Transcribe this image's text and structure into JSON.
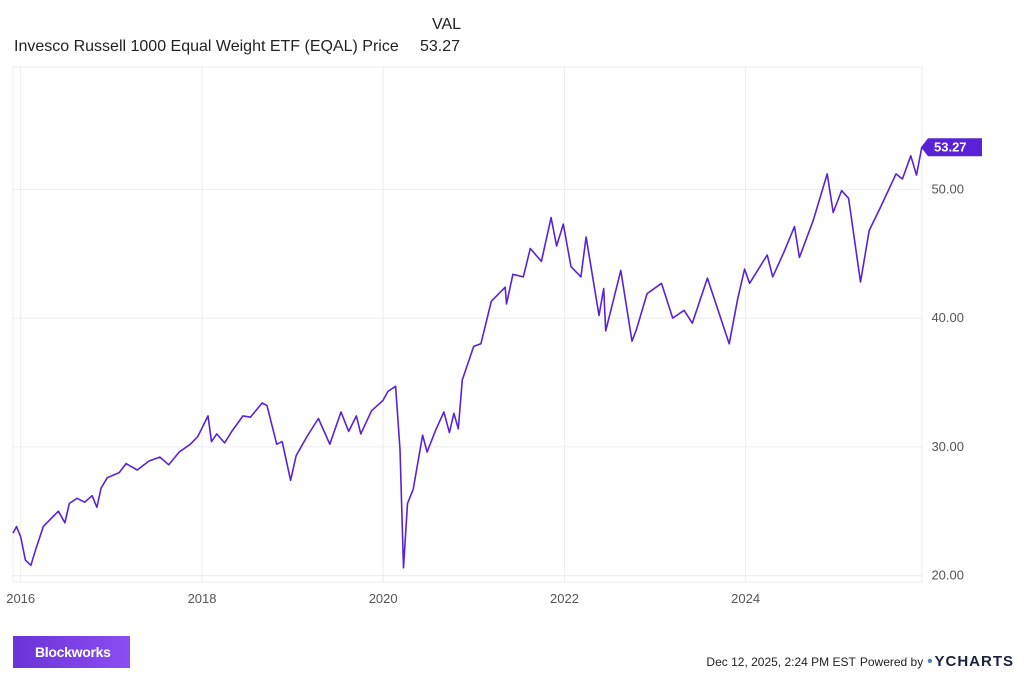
{
  "legend": {
    "header": "VAL",
    "name": "Invesco Russell 1000 Equal Weight ETF (EQAL) Price",
    "value": "53.27"
  },
  "colors": {
    "line": "#5a22d6",
    "grid": "#ececec",
    "label_bg": "#5a22d6"
  },
  "chart_data": {
    "type": "line",
    "title": "",
    "xlabel": "",
    "ylabel": "",
    "x_ticks": [
      "2016",
      "2018",
      "2020",
      "2022",
      "2024"
    ],
    "y_ticks": [
      "20.00",
      "30.00",
      "40.00",
      "50.00"
    ],
    "ylim": [
      19.5,
      59.5
    ],
    "xlim": [
      "2015-12-01",
      "2025-12-12"
    ],
    "last_value_label": "53.27",
    "series": [
      {
        "values": [
          [
            "2015-12-01",
            23.3
          ],
          [
            "2015-12-15",
            23.8
          ],
          [
            "2016-01-01",
            23.0
          ],
          [
            "2016-01-20",
            21.2
          ],
          [
            "2016-02-11",
            20.8
          ],
          [
            "2016-03-01",
            22.0
          ],
          [
            "2016-04-01",
            23.8
          ],
          [
            "2016-05-01",
            24.4
          ],
          [
            "2016-06-01",
            25.0
          ],
          [
            "2016-06-27",
            24.1
          ],
          [
            "2016-07-15",
            25.6
          ],
          [
            "2016-08-15",
            26.0
          ],
          [
            "2016-09-15",
            25.7
          ],
          [
            "2016-10-15",
            26.2
          ],
          [
            "2016-11-03",
            25.3
          ],
          [
            "2016-11-20",
            26.8
          ],
          [
            "2016-12-15",
            27.6
          ],
          [
            "2017-02-01",
            28.0
          ],
          [
            "2017-03-01",
            28.7
          ],
          [
            "2017-04-15",
            28.2
          ],
          [
            "2017-06-01",
            28.9
          ],
          [
            "2017-07-15",
            29.2
          ],
          [
            "2017-08-20",
            28.6
          ],
          [
            "2017-10-01",
            29.6
          ],
          [
            "2017-11-15",
            30.2
          ],
          [
            "2017-12-15",
            30.8
          ],
          [
            "2018-01-25",
            32.4
          ],
          [
            "2018-02-08",
            30.4
          ],
          [
            "2018-03-01",
            31.0
          ],
          [
            "2018-04-02",
            30.3
          ],
          [
            "2018-05-01",
            31.2
          ],
          [
            "2018-06-15",
            32.4
          ],
          [
            "2018-07-15",
            32.3
          ],
          [
            "2018-08-31",
            33.4
          ],
          [
            "2018-09-20",
            33.2
          ],
          [
            "2018-10-29",
            30.2
          ],
          [
            "2018-11-20",
            30.4
          ],
          [
            "2018-12-24",
            27.4
          ],
          [
            "2019-01-15",
            29.3
          ],
          [
            "2019-02-28",
            30.8
          ],
          [
            "2019-04-15",
            32.2
          ],
          [
            "2019-05-31",
            30.2
          ],
          [
            "2019-07-15",
            32.7
          ],
          [
            "2019-08-15",
            31.2
          ],
          [
            "2019-09-15",
            32.4
          ],
          [
            "2019-10-03",
            31.0
          ],
          [
            "2019-11-15",
            32.8
          ],
          [
            "2019-12-31",
            33.6
          ],
          [
            "2020-01-20",
            34.3
          ],
          [
            "2020-02-20",
            34.7
          ],
          [
            "2020-03-09",
            29.8
          ],
          [
            "2020-03-23",
            20.6
          ],
          [
            "2020-04-08",
            25.6
          ],
          [
            "2020-05-01",
            26.7
          ],
          [
            "2020-06-08",
            30.9
          ],
          [
            "2020-06-26",
            29.6
          ],
          [
            "2020-07-31",
            31.3
          ],
          [
            "2020-09-02",
            32.7
          ],
          [
            "2020-09-24",
            31.1
          ],
          [
            "2020-10-12",
            32.6
          ],
          [
            "2020-10-30",
            31.4
          ],
          [
            "2020-11-15",
            35.2
          ],
          [
            "2020-12-31",
            37.8
          ],
          [
            "2021-01-29",
            38.0
          ],
          [
            "2021-03-12",
            41.3
          ],
          [
            "2021-05-07",
            42.4
          ],
          [
            "2021-05-12",
            41.1
          ],
          [
            "2021-06-07",
            43.4
          ],
          [
            "2021-07-19",
            43.2
          ],
          [
            "2021-08-16",
            45.4
          ],
          [
            "2021-09-30",
            44.4
          ],
          [
            "2021-11-08",
            47.8
          ],
          [
            "2021-11-30",
            45.6
          ],
          [
            "2021-12-27",
            47.3
          ],
          [
            "2022-01-27",
            44.0
          ],
          [
            "2022-03-08",
            43.2
          ],
          [
            "2022-03-29",
            46.3
          ],
          [
            "2022-05-20",
            40.2
          ],
          [
            "2022-06-08",
            42.3
          ],
          [
            "2022-06-16",
            39.0
          ],
          [
            "2022-08-16",
            43.7
          ],
          [
            "2022-09-30",
            38.2
          ],
          [
            "2022-10-18",
            39.1
          ],
          [
            "2022-11-30",
            41.9
          ],
          [
            "2023-01-27",
            42.7
          ],
          [
            "2023-03-13",
            40.0
          ],
          [
            "2023-04-28",
            40.6
          ],
          [
            "2023-05-31",
            39.6
          ],
          [
            "2023-07-31",
            43.1
          ],
          [
            "2023-08-31",
            41.3
          ],
          [
            "2023-10-27",
            38.0
          ],
          [
            "2023-11-30",
            41.5
          ],
          [
            "2023-12-28",
            43.8
          ],
          [
            "2024-01-17",
            42.7
          ],
          [
            "2024-03-28",
            44.9
          ],
          [
            "2024-04-19",
            43.2
          ],
          [
            "2024-06-03",
            45.1
          ],
          [
            "2024-07-16",
            47.1
          ],
          [
            "2024-08-05",
            44.7
          ],
          [
            "2024-09-30",
            47.6
          ],
          [
            "2024-11-25",
            51.2
          ],
          [
            "2024-12-19",
            48.2
          ],
          [
            "2025-01-22",
            49.9
          ],
          [
            "2025-02-19",
            49.3
          ],
          [
            "2025-04-08",
            42.8
          ],
          [
            "2025-05-13",
            46.8
          ],
          [
            "2025-06-30",
            48.7
          ],
          [
            "2025-08-29",
            51.2
          ],
          [
            "2025-09-24",
            50.8
          ],
          [
            "2025-10-28",
            52.6
          ],
          [
            "2025-11-20",
            51.1
          ],
          [
            "2025-12-11",
            53.27
          ]
        ]
      }
    ]
  },
  "footer": {
    "brand": "Blockworks",
    "timestamp": "Dec 12, 2025, 2:24 PM EST",
    "powered_by": "Powered by",
    "ycharts": "YCHARTS"
  }
}
